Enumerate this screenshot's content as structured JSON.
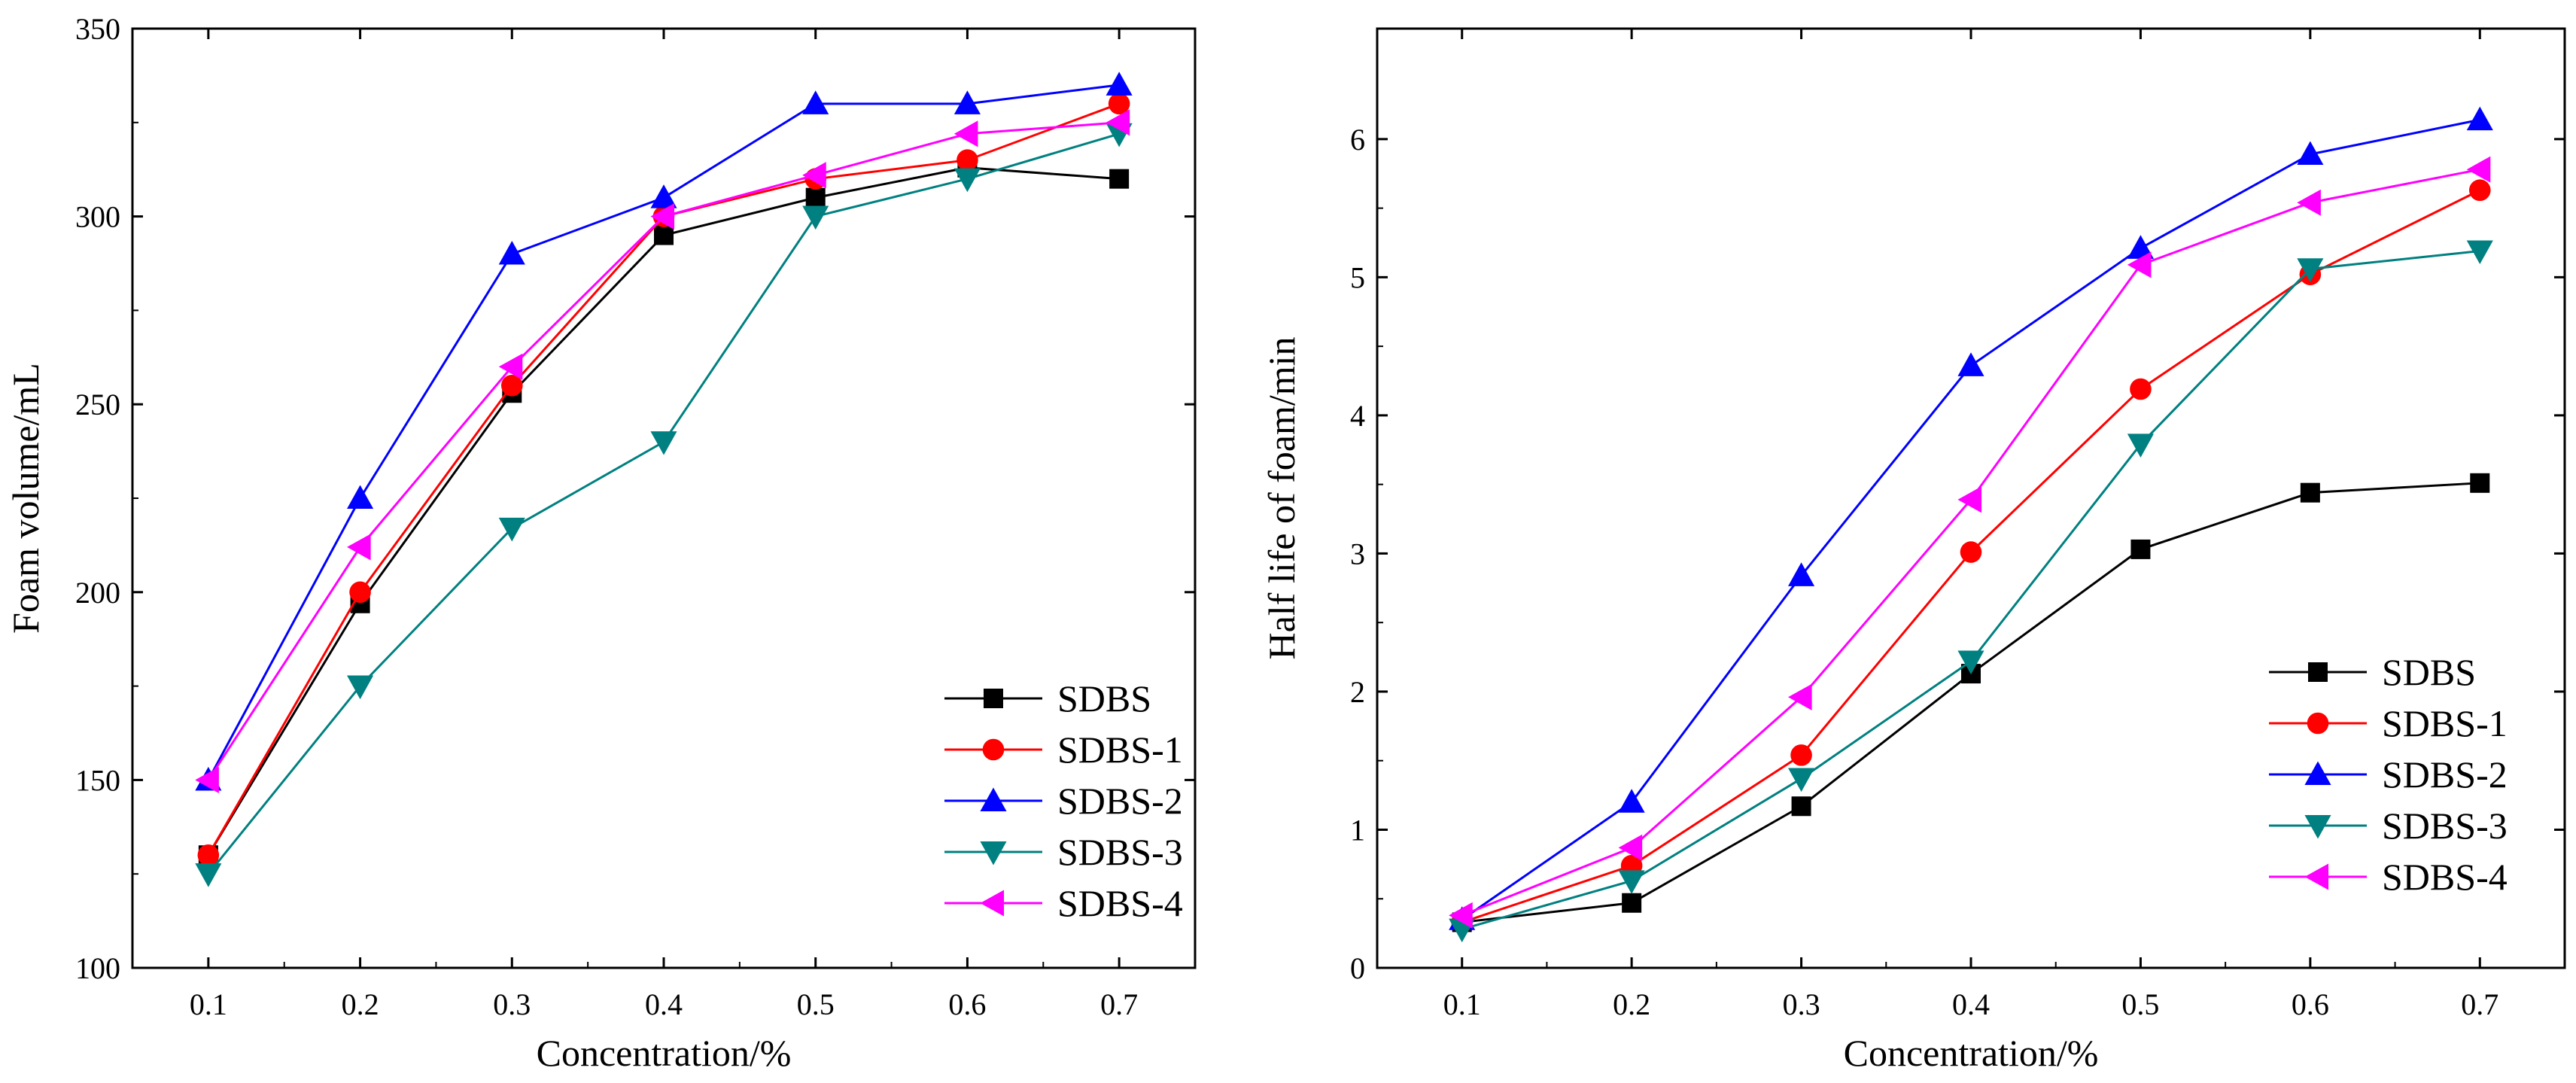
{
  "chart_data": [
    {
      "type": "line",
      "title": "",
      "xlabel": "Concentration/%",
      "ylabel": "Foam volume/mL",
      "x": [
        0.1,
        0.2,
        0.3,
        0.4,
        0.5,
        0.6,
        0.7
      ],
      "xlim": [
        0.05,
        0.75
      ],
      "ylim": [
        100,
        350
      ],
      "xticks": [
        0.1,
        0.2,
        0.3,
        0.4,
        0.5,
        0.6,
        0.7
      ],
      "yticks": [
        100,
        150,
        200,
        250,
        300,
        350
      ],
      "legend_position": "bottom-right",
      "grid": false,
      "series": [
        {
          "name": "SDBS",
          "color": "#000000",
          "marker": "square",
          "values": [
            130,
            197,
            253,
            295,
            305,
            313,
            310
          ]
        },
        {
          "name": "SDBS-1",
          "color": "#ff0000",
          "marker": "circle",
          "values": [
            130,
            200,
            255,
            300,
            310,
            315,
            330
          ]
        },
        {
          "name": "SDBS-2",
          "color": "#0000ff",
          "marker": "triangle-up",
          "values": [
            150,
            225,
            290,
            305,
            330,
            330,
            335
          ]
        },
        {
          "name": "SDBS-3",
          "color": "#008080",
          "marker": "triangle-down",
          "values": [
            125,
            175,
            217,
            240,
            300,
            310,
            322
          ]
        },
        {
          "name": "SDBS-4",
          "color": "#ff00ff",
          "marker": "triangle-left",
          "values": [
            150,
            212,
            260,
            300,
            311,
            322,
            325
          ]
        }
      ]
    },
    {
      "type": "line",
      "title": "",
      "xlabel": "Concentration/%",
      "ylabel": "Half life of foam/min",
      "x": [
        0.1,
        0.2,
        0.3,
        0.4,
        0.5,
        0.6,
        0.7
      ],
      "xlim": [
        0.05,
        0.75
      ],
      "ylim": [
        0,
        6.8
      ],
      "xticks": [
        0.1,
        0.2,
        0.3,
        0.4,
        0.5,
        0.6,
        0.7
      ],
      "yticks": [
        0,
        1,
        2,
        3,
        4,
        5,
        6
      ],
      "legend_position": "bottom-right",
      "grid": false,
      "series": [
        {
          "name": "SDBS",
          "color": "#000000",
          "marker": "square",
          "values": [
            0.33,
            0.47,
            1.17,
            2.13,
            3.03,
            3.44,
            3.51
          ]
        },
        {
          "name": "SDBS-1",
          "color": "#ff0000",
          "marker": "circle",
          "values": [
            0.33,
            0.74,
            1.54,
            3.01,
            4.19,
            5.02,
            5.63
          ]
        },
        {
          "name": "SDBS-2",
          "color": "#0000ff",
          "marker": "triangle-up",
          "values": [
            0.35,
            1.2,
            2.84,
            4.36,
            5.21,
            5.89,
            6.14
          ]
        },
        {
          "name": "SDBS-3",
          "color": "#008080",
          "marker": "triangle-down",
          "values": [
            0.28,
            0.63,
            1.37,
            2.22,
            3.79,
            5.06,
            5.19
          ]
        },
        {
          "name": "SDBS-4",
          "color": "#ff00ff",
          "marker": "triangle-left",
          "values": [
            0.38,
            0.87,
            1.96,
            3.39,
            5.09,
            5.54,
            5.78
          ]
        }
      ]
    }
  ]
}
